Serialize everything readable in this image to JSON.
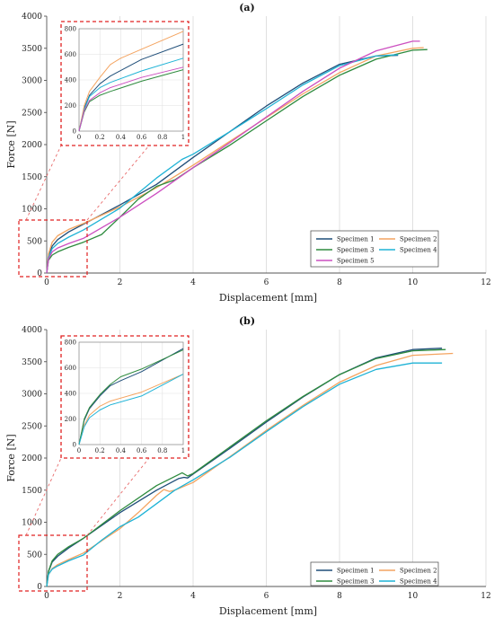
{
  "chart_data": [
    {
      "panel_label": "(a)",
      "type": "line",
      "xlabel": "Displacement [mm]",
      "ylabel": "Force [N]",
      "xlim": [
        0,
        12
      ],
      "ylim": [
        0,
        4000
      ],
      "xticks": [
        "0",
        "2",
        "4",
        "6",
        "8",
        "10",
        "12"
      ],
      "yticks": [
        "0",
        "500",
        "1000",
        "1500",
        "2000",
        "2500",
        "3000",
        "3500",
        "4000"
      ],
      "grid": "vertical",
      "legend_position": "bottom-right",
      "series": [
        {
          "name": "Specimen 1",
          "color": "#1f4e79",
          "x": [
            0,
            0.05,
            0.15,
            0.3,
            0.6,
            1.0,
            2.0,
            3.0,
            4.0,
            5.0,
            6.0,
            7.0,
            8.0,
            9.0,
            9.6
          ],
          "y": [
            0,
            250,
            420,
            520,
            640,
            760,
            1060,
            1380,
            1800,
            2200,
            2600,
            2960,
            3250,
            3380,
            3390
          ]
        },
        {
          "name": "Specimen 2",
          "color": "#f4a460",
          "x": [
            0,
            0.05,
            0.15,
            0.3,
            0.6,
            1.0,
            2.0,
            3.0,
            4.0,
            5.0,
            6.0,
            7.0,
            8.0,
            9.0,
            10.0,
            10.3
          ],
          "y": [
            0,
            300,
            480,
            580,
            680,
            770,
            1030,
            1330,
            1680,
            2050,
            2420,
            2790,
            3120,
            3380,
            3500,
            3510
          ]
        },
        {
          "name": "Specimen 3",
          "color": "#2e8b3e",
          "x": [
            0,
            0.05,
            0.15,
            0.3,
            0.6,
            1.0,
            1.5,
            2.0,
            2.5,
            3.0,
            3.5,
            4.0,
            5.0,
            6.0,
            7.0,
            8.0,
            9.0,
            10.0,
            10.4
          ],
          "y": [
            0,
            200,
            280,
            330,
            400,
            480,
            600,
            870,
            1150,
            1350,
            1450,
            1640,
            1990,
            2370,
            2750,
            3080,
            3330,
            3470,
            3480
          ]
        },
        {
          "name": "Specimen 4",
          "color": "#1fb3d6",
          "x": [
            0,
            0.05,
            0.15,
            0.3,
            0.6,
            1.0,
            2.0,
            3.0,
            3.7,
            4.0,
            5.0,
            6.0,
            7.0,
            8.0,
            9.0,
            9.6
          ],
          "y": [
            0,
            240,
            380,
            460,
            560,
            670,
            1010,
            1480,
            1770,
            1850,
            2200,
            2560,
            2930,
            3230,
            3380,
            3400
          ]
        },
        {
          "name": "Specimen 5",
          "color": "#cc4fc0",
          "x": [
            0,
            0.05,
            0.15,
            0.3,
            0.6,
            1.0,
            2.0,
            3.0,
            4.0,
            5.0,
            6.0,
            7.0,
            8.0,
            9.0,
            10.0,
            10.2
          ],
          "y": [
            0,
            220,
            330,
            390,
            460,
            540,
            870,
            1240,
            1640,
            2030,
            2430,
            2830,
            3190,
            3460,
            3610,
            3610
          ]
        }
      ],
      "inset": {
        "xlim": [
          0,
          1
        ],
        "ylim": [
          0,
          800
        ],
        "xticks": [
          "0",
          "0.2",
          "0.4",
          "0.6",
          "0.8",
          "1"
        ],
        "yticks": [
          "0",
          "200",
          "400",
          "600",
          "800"
        ],
        "series": [
          {
            "x": [
              0,
              0.05,
              0.1,
              0.2,
              0.3,
              0.6,
              1.0
            ],
            "y": [
              0,
              180,
              280,
              370,
              430,
              560,
              680
            ]
          },
          {
            "x": [
              0,
              0.05,
              0.1,
              0.2,
              0.3,
              0.4,
              0.6,
              1.0
            ],
            "y": [
              0,
              200,
              310,
              420,
              520,
              570,
              640,
              780
            ]
          },
          {
            "x": [
              0,
              0.05,
              0.1,
              0.2,
              0.3,
              0.6,
              1.0
            ],
            "y": [
              0,
              150,
              230,
              280,
              310,
              390,
              480
            ]
          },
          {
            "x": [
              0,
              0.05,
              0.1,
              0.2,
              0.3,
              0.6,
              1.0
            ],
            "y": [
              0,
              170,
              270,
              340,
              380,
              470,
              570
            ]
          },
          {
            "x": [
              0,
              0.05,
              0.1,
              0.2,
              0.3,
              0.6,
              1.0
            ],
            "y": [
              0,
              160,
              240,
              300,
              340,
              420,
              500
            ]
          }
        ]
      }
    },
    {
      "panel_label": "(b)",
      "type": "line",
      "xlabel": "Displacement [mm]",
      "ylabel": "Force [N]",
      "xlim": [
        0,
        12
      ],
      "ylim": [
        0,
        4000
      ],
      "xticks": [
        "0",
        "2",
        "4",
        "6",
        "8",
        "10",
        "12"
      ],
      "yticks": [
        "0",
        "500",
        "1000",
        "1500",
        "2000",
        "2500",
        "3000",
        "3500",
        "4000"
      ],
      "grid": "vertical",
      "legend_position": "bottom-right",
      "series": [
        {
          "name": "Specimen 1",
          "color": "#1f4e79",
          "x": [
            0,
            0.05,
            0.15,
            0.3,
            0.6,
            1.0,
            2.0,
            3.0,
            3.6,
            3.75,
            3.85,
            4.0,
            5.0,
            6.0,
            7.0,
            8.0,
            9.0,
            10.0,
            10.8
          ],
          "y": [
            0,
            230,
            380,
            470,
            600,
            750,
            1150,
            1500,
            1680,
            1700,
            1690,
            1750,
            2150,
            2560,
            2950,
            3300,
            3560,
            3690,
            3710
          ]
        },
        {
          "name": "Specimen 2",
          "color": "#f4a460",
          "x": [
            0,
            0.05,
            0.15,
            0.3,
            0.6,
            1.0,
            2.0,
            2.5,
            3.0,
            3.2,
            3.35,
            3.5,
            4.0,
            5.0,
            6.0,
            7.0,
            8.0,
            9.0,
            10.0,
            11.1
          ],
          "y": [
            0,
            180,
            280,
            340,
            420,
            520,
            900,
            1150,
            1420,
            1510,
            1480,
            1500,
            1620,
            2020,
            2430,
            2820,
            3180,
            3440,
            3600,
            3630
          ]
        },
        {
          "name": "Specimen 3",
          "color": "#2e8b3e",
          "x": [
            0,
            0.05,
            0.15,
            0.3,
            0.6,
            1.0,
            2.0,
            3.0,
            3.7,
            3.85,
            4.0,
            5.0,
            6.0,
            7.0,
            8.0,
            9.0,
            10.0,
            10.9
          ],
          "y": [
            0,
            240,
            400,
            500,
            620,
            750,
            1180,
            1570,
            1770,
            1720,
            1760,
            2170,
            2580,
            2960,
            3300,
            3550,
            3670,
            3690
          ]
        },
        {
          "name": "Specimen 4",
          "color": "#1fb3d6",
          "x": [
            0,
            0.05,
            0.15,
            0.3,
            0.6,
            1.0,
            1.5,
            2.0,
            2.5,
            3.0,
            3.5,
            4.0,
            5.0,
            6.0,
            7.0,
            8.0,
            9.0,
            10.0,
            10.8
          ],
          "y": [
            0,
            190,
            270,
            320,
            400,
            490,
            720,
            930,
            1080,
            1290,
            1500,
            1660,
            2010,
            2410,
            2800,
            3150,
            3380,
            3480,
            3480
          ]
        }
      ],
      "inset": {
        "xlim": [
          0,
          1
        ],
        "ylim": [
          0,
          800
        ],
        "xticks": [
          "0",
          "0.2",
          "0.4",
          "0.6",
          "0.8",
          "1"
        ],
        "yticks": [
          "0",
          "200",
          "400",
          "600",
          "800"
        ],
        "series": [
          {
            "x": [
              0,
              0.05,
              0.1,
              0.2,
              0.3,
              0.4,
              0.6,
              1.0
            ],
            "y": [
              0,
              190,
              280,
              380,
              460,
              500,
              570,
              750
            ]
          },
          {
            "x": [
              0,
              0.05,
              0.1,
              0.2,
              0.3,
              0.6,
              0.8,
              1.0
            ],
            "y": [
              0,
              150,
              230,
              300,
              340,
              410,
              480,
              550
            ]
          },
          {
            "x": [
              0,
              0.05,
              0.1,
              0.2,
              0.3,
              0.4,
              0.6,
              1.0
            ],
            "y": [
              0,
              200,
              290,
              390,
              470,
              530,
              590,
              740
            ]
          },
          {
            "x": [
              0,
              0.05,
              0.1,
              0.2,
              0.3,
              0.6,
              1.0
            ],
            "y": [
              0,
              140,
              210,
              270,
              310,
              380,
              550
            ]
          }
        ]
      }
    }
  ]
}
